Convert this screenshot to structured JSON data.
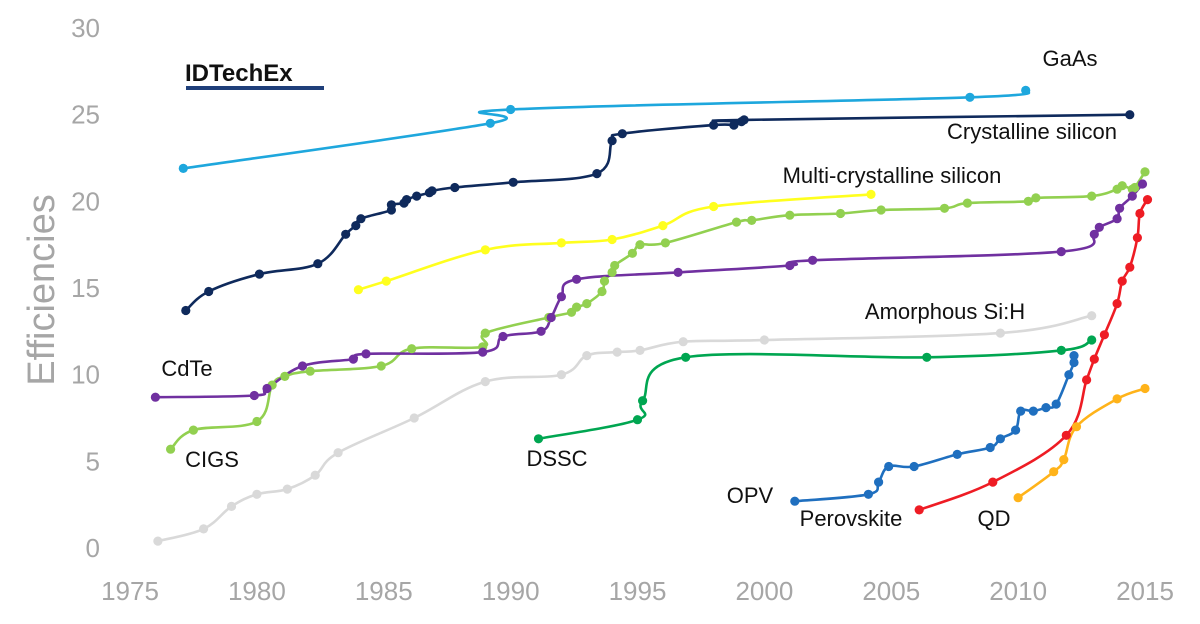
{
  "chart_data": {
    "type": "line",
    "brand": "IDTechEx",
    "ylabel": "Efficiencies",
    "xlabel": "",
    "xlim": [
      1975,
      2015
    ],
    "ylim": [
      0,
      30
    ],
    "x_ticks": [
      1975,
      1980,
      1985,
      1990,
      1995,
      2000,
      2005,
      2010,
      2015
    ],
    "y_ticks": [
      0,
      5,
      10,
      15,
      20,
      25,
      30
    ],
    "grid": false,
    "legend": "inline labels",
    "series": [
      {
        "name": "GaAs",
        "color": "#1ea7dd",
        "points": [
          [
            1977.1,
            21.9
          ],
          [
            1989.2,
            24.5
          ],
          [
            1990.0,
            25.3
          ],
          [
            2008.1,
            26.0
          ],
          [
            2010.3,
            26.4
          ]
        ]
      },
      {
        "name": "Crystalline silicon",
        "color": "#0f2a5c",
        "points": [
          [
            1977.2,
            13.7
          ],
          [
            1978.1,
            14.8
          ],
          [
            1980.1,
            15.8
          ],
          [
            1982.4,
            16.4
          ],
          [
            1983.5,
            18.1
          ],
          [
            1983.9,
            18.6
          ],
          [
            1984.1,
            19.0
          ],
          [
            1985.3,
            19.5
          ],
          [
            1985.3,
            19.8
          ],
          [
            1985.8,
            19.9
          ],
          [
            1985.9,
            20.1
          ],
          [
            1986.3,
            20.3
          ],
          [
            1986.8,
            20.5
          ],
          [
            1986.9,
            20.6
          ],
          [
            1987.8,
            20.8
          ],
          [
            1990.1,
            21.1
          ],
          [
            1993.4,
            21.6
          ],
          [
            1994.0,
            23.5
          ],
          [
            1994.4,
            23.9
          ],
          [
            1998.0,
            24.4
          ],
          [
            1998.8,
            24.4
          ],
          [
            1999.1,
            24.6
          ],
          [
            1999.2,
            24.7
          ],
          [
            2014.4,
            25.0
          ]
        ]
      },
      {
        "name": "Multi-crystalline silicon",
        "color": "#ffff1e",
        "points": [
          [
            1984.0,
            14.9
          ],
          [
            1985.1,
            15.4
          ],
          [
            1989.0,
            17.2
          ],
          [
            1992.0,
            17.6
          ],
          [
            1994.0,
            17.8
          ],
          [
            1996.0,
            18.6
          ],
          [
            1998.0,
            19.7
          ],
          [
            2004.2,
            20.4
          ]
        ]
      },
      {
        "name": "CIGS",
        "color": "#92d050",
        "points": [
          [
            1976.6,
            5.7
          ],
          [
            1977.5,
            6.8
          ],
          [
            1980.0,
            7.3
          ],
          [
            1980.6,
            9.4
          ],
          [
            1981.1,
            9.9
          ],
          [
            1982.1,
            10.2
          ],
          [
            1984.9,
            10.5
          ],
          [
            1986.1,
            11.5
          ],
          [
            1988.9,
            11.6
          ],
          [
            1989.0,
            12.4
          ],
          [
            1991.5,
            13.3
          ],
          [
            1992.4,
            13.6
          ],
          [
            1992.6,
            13.9
          ],
          [
            1993.0,
            14.1
          ],
          [
            1993.6,
            14.8
          ],
          [
            1993.7,
            15.4
          ],
          [
            1994.0,
            15.9
          ],
          [
            1994.1,
            16.3
          ],
          [
            1994.8,
            17.0
          ],
          [
            1995.1,
            17.5
          ],
          [
            1996.1,
            17.6
          ],
          [
            1998.9,
            18.8
          ],
          [
            1999.5,
            18.9
          ],
          [
            2001.0,
            19.2
          ],
          [
            2003.0,
            19.3
          ],
          [
            2004.6,
            19.5
          ],
          [
            2007.1,
            19.6
          ],
          [
            2008.0,
            19.9
          ],
          [
            2010.4,
            20.0
          ],
          [
            2010.7,
            20.2
          ],
          [
            2012.9,
            20.3
          ],
          [
            2013.9,
            20.7
          ],
          [
            2014.1,
            20.9
          ],
          [
            2014.5,
            20.7
          ],
          [
            2014.6,
            20.8
          ],
          [
            2015.0,
            21.7
          ]
        ]
      },
      {
        "name": "CdTe",
        "color": "#7030a0",
        "points": [
          [
            1976.0,
            8.7
          ],
          [
            1979.9,
            8.8
          ],
          [
            1980.4,
            9.2
          ],
          [
            1981.8,
            10.5
          ],
          [
            1983.8,
            10.9
          ],
          [
            1984.3,
            11.2
          ],
          [
            1988.9,
            11.3
          ],
          [
            1989.7,
            12.2
          ],
          [
            1991.2,
            12.5
          ],
          [
            1991.6,
            13.3
          ],
          [
            1992.0,
            14.5
          ],
          [
            1992.6,
            15.5
          ],
          [
            1996.6,
            15.9
          ],
          [
            2001.0,
            16.3
          ],
          [
            2001.9,
            16.6
          ],
          [
            2011.7,
            17.1
          ],
          [
            2013.0,
            18.1
          ],
          [
            2013.2,
            18.5
          ],
          [
            2013.9,
            19.0
          ],
          [
            2014.0,
            19.6
          ],
          [
            2014.5,
            20.3
          ],
          [
            2014.9,
            21.0
          ]
        ]
      },
      {
        "name": "Amorphous Si:H",
        "color": "#d9d9d9",
        "points": [
          [
            1976.1,
            0.4
          ],
          [
            1977.9,
            1.1
          ],
          [
            1979.0,
            2.4
          ],
          [
            1980.0,
            3.1
          ],
          [
            1981.2,
            3.4
          ],
          [
            1982.3,
            4.2
          ],
          [
            1983.2,
            5.5
          ],
          [
            1986.2,
            7.5
          ],
          [
            1989.0,
            9.6
          ],
          [
            1992.0,
            10.0
          ],
          [
            1993.0,
            11.1
          ],
          [
            1994.2,
            11.3
          ],
          [
            1995.1,
            11.4
          ],
          [
            1996.8,
            11.9
          ],
          [
            2000.0,
            12.0
          ],
          [
            2009.3,
            12.4
          ],
          [
            2012.9,
            13.4
          ]
        ]
      },
      {
        "name": "DSSC",
        "color": "#00a651",
        "points": [
          [
            1991.1,
            6.3
          ],
          [
            1995.0,
            7.4
          ],
          [
            1995.2,
            8.5
          ],
          [
            1996.9,
            11.0
          ],
          [
            2006.4,
            11.0
          ],
          [
            2011.7,
            11.4
          ],
          [
            2012.9,
            12.0
          ]
        ]
      },
      {
        "name": "OPV",
        "color": "#1f6fbf",
        "points": [
          [
            2001.2,
            2.7
          ],
          [
            2004.1,
            3.1
          ],
          [
            2004.5,
            3.8
          ],
          [
            2004.9,
            4.7
          ],
          [
            2005.9,
            4.7
          ],
          [
            2007.6,
            5.4
          ],
          [
            2008.9,
            5.8
          ],
          [
            2009.3,
            6.3
          ],
          [
            2009.9,
            6.8
          ],
          [
            2010.1,
            7.9
          ],
          [
            2010.6,
            7.9
          ],
          [
            2011.1,
            8.1
          ],
          [
            2011.5,
            8.3
          ],
          [
            2012.0,
            10.0
          ],
          [
            2012.2,
            10.7
          ],
          [
            2012.2,
            11.1
          ]
        ]
      },
      {
        "name": "Perovskite",
        "color": "#ee1c24",
        "points": [
          [
            2006.1,
            2.2
          ],
          [
            2009.0,
            3.8
          ],
          [
            2011.9,
            6.5
          ],
          [
            2012.7,
            9.7
          ],
          [
            2013.0,
            10.9
          ],
          [
            2013.4,
            12.3
          ],
          [
            2013.9,
            14.1
          ],
          [
            2014.1,
            15.4
          ],
          [
            2014.4,
            16.2
          ],
          [
            2014.7,
            17.9
          ],
          [
            2014.8,
            19.3
          ],
          [
            2015.1,
            20.1
          ]
        ]
      },
      {
        "name": "QD",
        "color": "#ffb31a",
        "points": [
          [
            2010.0,
            2.9
          ],
          [
            2011.4,
            4.4
          ],
          [
            2011.8,
            5.1
          ],
          [
            2012.3,
            7.0
          ],
          [
            2013.9,
            8.6
          ],
          [
            2015.0,
            9.2
          ]
        ]
      }
    ]
  }
}
